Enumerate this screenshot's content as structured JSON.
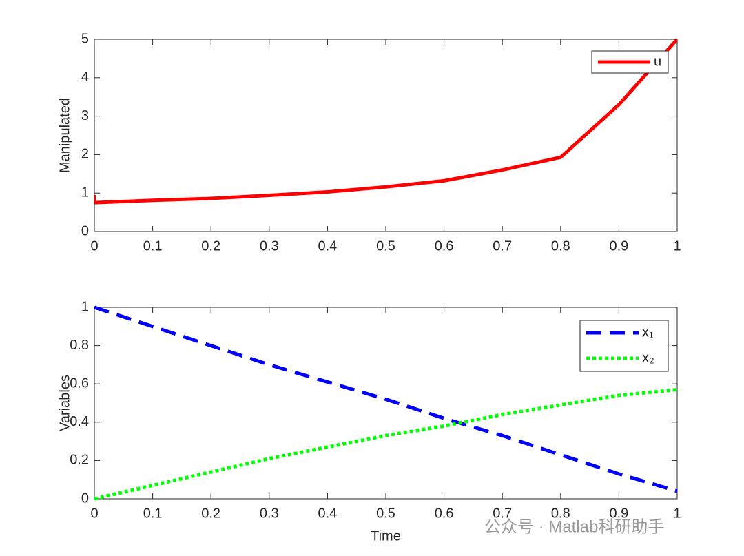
{
  "chart_data": [
    {
      "type": "line",
      "ylabel": "Manipulated",
      "x": [
        0,
        0,
        0.1,
        0.2,
        0.3,
        0.4,
        0.5,
        0.6,
        0.7,
        0.8,
        0.9,
        1
      ],
      "series": [
        {
          "name": "u",
          "color": "#ff0000",
          "linestyle": "solid",
          "values": [
            0.95,
            0.75,
            0.81,
            0.86,
            0.94,
            1.03,
            1.16,
            1.32,
            1.6,
            1.93,
            3.3,
            5
          ]
        }
      ],
      "xlim": [
        0,
        1
      ],
      "xticks": [
        0,
        0.1,
        0.2,
        0.3,
        0.4,
        0.5,
        0.6,
        0.7,
        0.8,
        0.9,
        1
      ],
      "ylim": [
        0,
        5
      ],
      "yticks": [
        0,
        1,
        2,
        3,
        4,
        5
      ],
      "legend": "northeast"
    },
    {
      "type": "line",
      "ylabel": "Variables",
      "xlabel": "Time",
      "x": [
        0,
        0.1,
        0.2,
        0.3,
        0.4,
        0.5,
        0.6,
        0.7,
        0.8,
        0.9,
        1
      ],
      "series": [
        {
          "name": "x₁",
          "color": "#0000ff",
          "linestyle": "dashed",
          "values": [
            1,
            0.9,
            0.8,
            0.7,
            0.61,
            0.52,
            0.42,
            0.33,
            0.23,
            0.13,
            0.04
          ]
        },
        {
          "name": "x₂",
          "color": "#00ff00",
          "linestyle": "dotted",
          "values": [
            0,
            0.07,
            0.14,
            0.21,
            0.27,
            0.33,
            0.38,
            0.44,
            0.49,
            0.54,
            0.57
          ]
        }
      ],
      "xlim": [
        0,
        1
      ],
      "xticks": [
        0,
        0.1,
        0.2,
        0.3,
        0.4,
        0.5,
        0.6,
        0.7,
        0.8,
        0.9,
        1
      ],
      "ylim": [
        0,
        1
      ],
      "yticks": [
        0,
        0.2,
        0.4,
        0.6,
        0.8,
        1
      ],
      "legend": "northeast"
    }
  ],
  "watermark": "公众号 · Matlab科研助手"
}
